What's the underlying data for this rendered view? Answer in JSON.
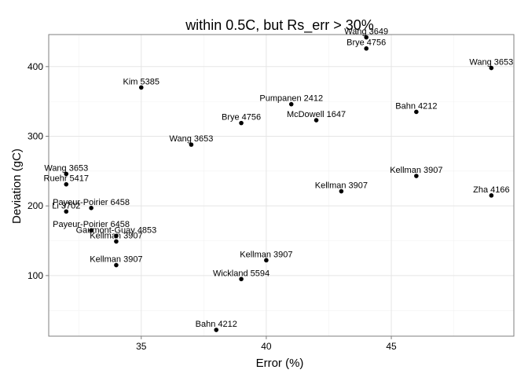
{
  "chart_data": {
    "type": "scatter",
    "title": "within 0.5C, but Rs_err > 30%",
    "xlabel": "Error (%)",
    "ylabel": "Deviation (gC)",
    "xlim": [
      31.3,
      49.9
    ],
    "ylim": [
      13,
      446
    ],
    "xticks": [
      35,
      40,
      45
    ],
    "yticks": [
      100,
      200,
      300,
      400
    ],
    "grid": true,
    "points": [
      {
        "x": 44,
        "y": 442,
        "label": "Wang 3649"
      },
      {
        "x": 44,
        "y": 426,
        "label": "Brye 4756"
      },
      {
        "x": 49,
        "y": 398,
        "label": "Wang 3653"
      },
      {
        "x": 35,
        "y": 370,
        "label": "Kim 5385"
      },
      {
        "x": 41,
        "y": 346,
        "label": "Pumpanen 2412"
      },
      {
        "x": 46,
        "y": 335,
        "label": "Bahn 4212"
      },
      {
        "x": 42,
        "y": 323,
        "label": "McDowell 1647"
      },
      {
        "x": 39,
        "y": 319,
        "label": "Brye 4756"
      },
      {
        "x": 37,
        "y": 288,
        "label": "Wang 3653"
      },
      {
        "x": 32,
        "y": 246,
        "label": "Wang 3653"
      },
      {
        "x": 46,
        "y": 243,
        "label": "Kellman 3907"
      },
      {
        "x": 32,
        "y": 231,
        "label": "Ruehr 5417"
      },
      {
        "x": 43,
        "y": 221,
        "label": "Kellman 3907"
      },
      {
        "x": 49,
        "y": 215,
        "label": "Zha 4166"
      },
      {
        "x": 33,
        "y": 197,
        "label": "Payeur-Poirier 6458"
      },
      {
        "x": 32,
        "y": 192,
        "label": "Li 3702"
      },
      {
        "x": 33,
        "y": 165,
        "label": "Payeur-Poirier 6458"
      },
      {
        "x": 34,
        "y": 157,
        "label": "Gaumont-Guay 4853"
      },
      {
        "x": 34,
        "y": 149,
        "label": "Kellman 3907"
      },
      {
        "x": 40,
        "y": 122,
        "label": "Kellman 3907"
      },
      {
        "x": 34,
        "y": 115,
        "label": "Kellman 3907"
      },
      {
        "x": 39,
        "y": 95,
        "label": "Wickland 5594"
      },
      {
        "x": 38,
        "y": 22,
        "label": "Bahn 4212"
      }
    ]
  }
}
